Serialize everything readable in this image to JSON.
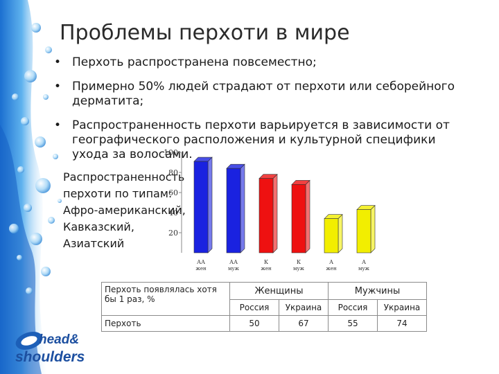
{
  "title": "Проблемы перхоти в мире",
  "bullets": [
    "Перхоть распространена повсеместно;",
    "Примерно 50% людей страдают от перхоти или себорейного дерматита;",
    "Распространенность перхоти варьируется в зависимости от географического расположения и культурной специфики ухода за волосами."
  ],
  "side_label": [
    "Распространенность",
    "перхоти по типам:",
    "Афро-американский,",
    "Кавказский,",
    "Азиатский"
  ],
  "chart_data": {
    "type": "bar",
    "categories": [
      [
        "АА",
        "жен"
      ],
      [
        "АА",
        "муж"
      ],
      [
        "К",
        "жен"
      ],
      [
        "К",
        "муж"
      ],
      [
        "А",
        "жен"
      ],
      [
        "А",
        "муж"
      ]
    ],
    "values": [
      91,
      84,
      74,
      68,
      34,
      43
    ],
    "bar_colors": [
      "#1a22e0",
      "#1a22e0",
      "#ee1111",
      "#ee1111",
      "#f2ee00",
      "#f2ee00"
    ],
    "yticks": [
      20,
      40,
      60,
      80,
      100
    ],
    "ylim": [
      0,
      100
    ]
  },
  "table": {
    "row1_label": "Перхоть появлялась хотя бы 1 раз, %",
    "groups": [
      "Женщины",
      "Мужчины"
    ],
    "subheaders": [
      "Россия",
      "Украина",
      "Россия",
      "Украина"
    ],
    "row2_label": "Перхоть",
    "values": [
      "50",
      "67",
      "55",
      "74"
    ]
  },
  "logo": {
    "line1": "head&",
    "line2": "shoulders"
  }
}
